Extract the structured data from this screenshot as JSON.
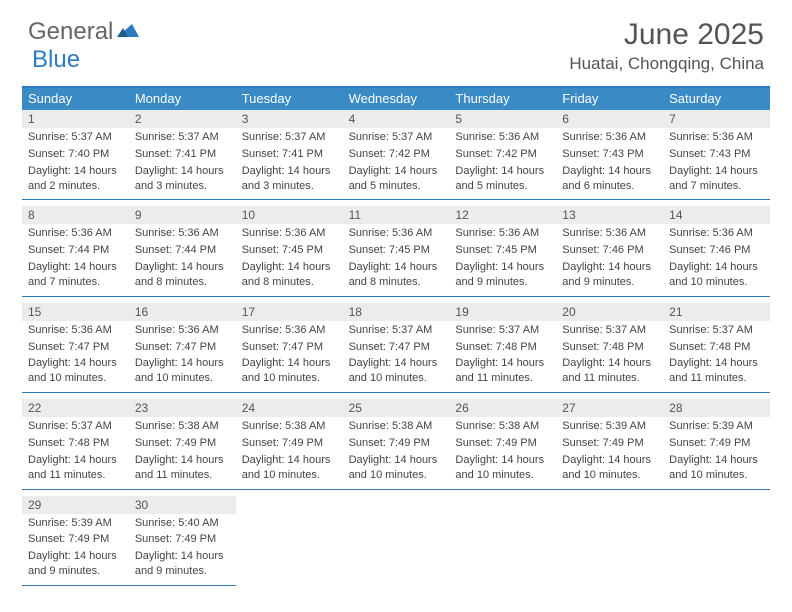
{
  "logo": {
    "text1": "General",
    "text2": "Blue"
  },
  "title": "June 2025",
  "location": "Huatai, Chongqing, China",
  "colors": {
    "header_bar": "#3a8ac6",
    "border": "#2f7bbf",
    "daynum_bg": "#ececec",
    "text": "#444444",
    "weekday_text": "#ffffff"
  },
  "weekdays": [
    "Sunday",
    "Monday",
    "Tuesday",
    "Wednesday",
    "Thursday",
    "Friday",
    "Saturday"
  ],
  "weeks": [
    [
      {
        "n": "1",
        "sr": "Sunrise: 5:37 AM",
        "ss": "Sunset: 7:40 PM",
        "dl": "Daylight: 14 hours and 2 minutes."
      },
      {
        "n": "2",
        "sr": "Sunrise: 5:37 AM",
        "ss": "Sunset: 7:41 PM",
        "dl": "Daylight: 14 hours and 3 minutes."
      },
      {
        "n": "3",
        "sr": "Sunrise: 5:37 AM",
        "ss": "Sunset: 7:41 PM",
        "dl": "Daylight: 14 hours and 3 minutes."
      },
      {
        "n": "4",
        "sr": "Sunrise: 5:37 AM",
        "ss": "Sunset: 7:42 PM",
        "dl": "Daylight: 14 hours and 5 minutes."
      },
      {
        "n": "5",
        "sr": "Sunrise: 5:36 AM",
        "ss": "Sunset: 7:42 PM",
        "dl": "Daylight: 14 hours and 5 minutes."
      },
      {
        "n": "6",
        "sr": "Sunrise: 5:36 AM",
        "ss": "Sunset: 7:43 PM",
        "dl": "Daylight: 14 hours and 6 minutes."
      },
      {
        "n": "7",
        "sr": "Sunrise: 5:36 AM",
        "ss": "Sunset: 7:43 PM",
        "dl": "Daylight: 14 hours and 7 minutes."
      }
    ],
    [
      {
        "n": "8",
        "sr": "Sunrise: 5:36 AM",
        "ss": "Sunset: 7:44 PM",
        "dl": "Daylight: 14 hours and 7 minutes."
      },
      {
        "n": "9",
        "sr": "Sunrise: 5:36 AM",
        "ss": "Sunset: 7:44 PM",
        "dl": "Daylight: 14 hours and 8 minutes."
      },
      {
        "n": "10",
        "sr": "Sunrise: 5:36 AM",
        "ss": "Sunset: 7:45 PM",
        "dl": "Daylight: 14 hours and 8 minutes."
      },
      {
        "n": "11",
        "sr": "Sunrise: 5:36 AM",
        "ss": "Sunset: 7:45 PM",
        "dl": "Daylight: 14 hours and 8 minutes."
      },
      {
        "n": "12",
        "sr": "Sunrise: 5:36 AM",
        "ss": "Sunset: 7:45 PM",
        "dl": "Daylight: 14 hours and 9 minutes."
      },
      {
        "n": "13",
        "sr": "Sunrise: 5:36 AM",
        "ss": "Sunset: 7:46 PM",
        "dl": "Daylight: 14 hours and 9 minutes."
      },
      {
        "n": "14",
        "sr": "Sunrise: 5:36 AM",
        "ss": "Sunset: 7:46 PM",
        "dl": "Daylight: 14 hours and 10 minutes."
      }
    ],
    [
      {
        "n": "15",
        "sr": "Sunrise: 5:36 AM",
        "ss": "Sunset: 7:47 PM",
        "dl": "Daylight: 14 hours and 10 minutes."
      },
      {
        "n": "16",
        "sr": "Sunrise: 5:36 AM",
        "ss": "Sunset: 7:47 PM",
        "dl": "Daylight: 14 hours and 10 minutes."
      },
      {
        "n": "17",
        "sr": "Sunrise: 5:36 AM",
        "ss": "Sunset: 7:47 PM",
        "dl": "Daylight: 14 hours and 10 minutes."
      },
      {
        "n": "18",
        "sr": "Sunrise: 5:37 AM",
        "ss": "Sunset: 7:47 PM",
        "dl": "Daylight: 14 hours and 10 minutes."
      },
      {
        "n": "19",
        "sr": "Sunrise: 5:37 AM",
        "ss": "Sunset: 7:48 PM",
        "dl": "Daylight: 14 hours and 11 minutes."
      },
      {
        "n": "20",
        "sr": "Sunrise: 5:37 AM",
        "ss": "Sunset: 7:48 PM",
        "dl": "Daylight: 14 hours and 11 minutes."
      },
      {
        "n": "21",
        "sr": "Sunrise: 5:37 AM",
        "ss": "Sunset: 7:48 PM",
        "dl": "Daylight: 14 hours and 11 minutes."
      }
    ],
    [
      {
        "n": "22",
        "sr": "Sunrise: 5:37 AM",
        "ss": "Sunset: 7:48 PM",
        "dl": "Daylight: 14 hours and 11 minutes."
      },
      {
        "n": "23",
        "sr": "Sunrise: 5:38 AM",
        "ss": "Sunset: 7:49 PM",
        "dl": "Daylight: 14 hours and 11 minutes."
      },
      {
        "n": "24",
        "sr": "Sunrise: 5:38 AM",
        "ss": "Sunset: 7:49 PM",
        "dl": "Daylight: 14 hours and 10 minutes."
      },
      {
        "n": "25",
        "sr": "Sunrise: 5:38 AM",
        "ss": "Sunset: 7:49 PM",
        "dl": "Daylight: 14 hours and 10 minutes."
      },
      {
        "n": "26",
        "sr": "Sunrise: 5:38 AM",
        "ss": "Sunset: 7:49 PM",
        "dl": "Daylight: 14 hours and 10 minutes."
      },
      {
        "n": "27",
        "sr": "Sunrise: 5:39 AM",
        "ss": "Sunset: 7:49 PM",
        "dl": "Daylight: 14 hours and 10 minutes."
      },
      {
        "n": "28",
        "sr": "Sunrise: 5:39 AM",
        "ss": "Sunset: 7:49 PM",
        "dl": "Daylight: 14 hours and 10 minutes."
      }
    ],
    [
      {
        "n": "29",
        "sr": "Sunrise: 5:39 AM",
        "ss": "Sunset: 7:49 PM",
        "dl": "Daylight: 14 hours and 9 minutes."
      },
      {
        "n": "30",
        "sr": "Sunrise: 5:40 AM",
        "ss": "Sunset: 7:49 PM",
        "dl": "Daylight: 14 hours and 9 minutes."
      },
      null,
      null,
      null,
      null,
      null
    ]
  ]
}
